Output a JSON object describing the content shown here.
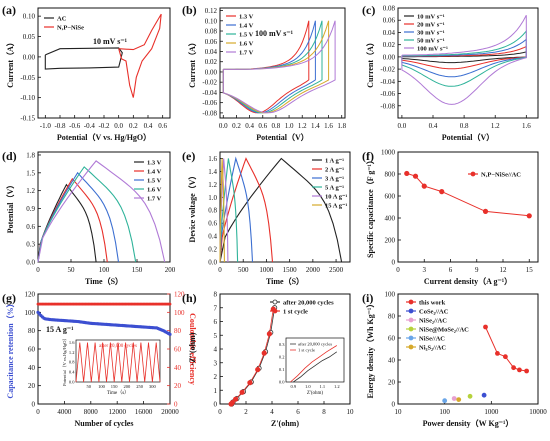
{
  "chart_data": [
    {
      "type": "line",
      "panel": "(a)",
      "plot": "cv",
      "xlabel": "Potential（V vs. Hg/HgO）",
      "ylabel": "Current（A）",
      "xlim": [
        -1.1,
        0.7
      ],
      "ylim": [
        -0.15,
        0.12
      ],
      "xticks": [
        "-1.0",
        "-0.8",
        "-0.6",
        "-0.4",
        "-0.2",
        "0.0",
        "0.2",
        "0.4",
        "0.6"
      ],
      "yticks": [
        "-0.15",
        "-0.10",
        "-0.05",
        "0.00",
        "0.05",
        "0.10"
      ],
      "annotation": "10 mV s⁻¹",
      "legend_position": "top-left",
      "series": [
        {
          "name": "AC",
          "color": "#222222",
          "points": [
            [
              -1.0,
              0.005
            ],
            [
              -0.8,
              0.02
            ],
            [
              -0.4,
              0.021
            ],
            [
              0.0,
              0.022
            ],
            [
              0.05,
              0.01
            ],
            [
              0.0,
              -0.025
            ],
            [
              -0.4,
              -0.027
            ],
            [
              -0.8,
              -0.028
            ],
            [
              -1.0,
              -0.03
            ],
            [
              -1.0,
              0.005
            ]
          ]
        },
        {
          "name": "N,P−NiSe",
          "color": "#e8302a",
          "points": [
            [
              0.0,
              0.02
            ],
            [
              0.2,
              0.018
            ],
            [
              0.35,
              0.03
            ],
            [
              0.45,
              0.065
            ],
            [
              0.58,
              0.105
            ],
            [
              0.56,
              0.07
            ],
            [
              0.45,
              0.02
            ],
            [
              0.32,
              -0.01
            ],
            [
              0.24,
              -0.05
            ],
            [
              0.2,
              -0.1
            ],
            [
              0.15,
              -0.07
            ],
            [
              0.1,
              -0.01
            ],
            [
              0.04,
              -0.005
            ],
            [
              0.0,
              0.02
            ]
          ]
        }
      ]
    },
    {
      "type": "line",
      "panel": "(b)",
      "plot": "cv",
      "xlabel": "Potential（V）",
      "ylabel": "Current（A）",
      "xlim": [
        -0.05,
        1.85
      ],
      "ylim": [
        -0.09,
        0.125
      ],
      "xticks": [
        "0.0",
        "0.2",
        "0.4",
        "0.6",
        "0.8",
        "1.0",
        "1.2",
        "1.4",
        "1.6",
        "1.8"
      ],
      "yticks": [
        "-0.08",
        "-0.06",
        "-0.04",
        "-0.02",
        "0.00",
        "0.02",
        "0.04",
        "0.06",
        "0.08",
        "0.10",
        "0.12"
      ],
      "annotation": "100 mV s⁻¹",
      "legend_position": "top-left",
      "series": [
        {
          "name": "1.3 V",
          "color": "#e8302a",
          "vmax": 1.3
        },
        {
          "name": "1.4 V",
          "color": "#3c6fd1",
          "vmax": 1.4
        },
        {
          "name": "1.5 V",
          "color": "#2fb39a",
          "vmax": 1.5
        },
        {
          "name": "1.6 V",
          "color": "#d6a92b",
          "vmax": 1.6
        },
        {
          "name": "1.7 V",
          "color": "#b07ad6",
          "vmax": 1.7
        }
      ]
    },
    {
      "type": "line",
      "panel": "(c)",
      "plot": "cv",
      "xlabel": "Potential（V）",
      "ylabel": "Current（A）",
      "xlim": [
        -0.05,
        1.75
      ],
      "ylim": [
        -0.1,
        0.08
      ],
      "xticks": [
        "0.0",
        "0.4",
        "0.8",
        "1.2",
        "1.6"
      ],
      "yticks": [
        "-0.08",
        "-0.06",
        "-0.04",
        "-0.02",
        "0.00",
        "0.02",
        "0.04",
        "0.06",
        "0.08"
      ],
      "legend_position": "top-left",
      "series": [
        {
          "name": "10 mV s⁻¹",
          "color": "#222222",
          "scale": 0.12
        },
        {
          "name": "20 mV s⁻¹",
          "color": "#e8302a",
          "scale": 0.25
        },
        {
          "name": "30 mV s⁻¹",
          "color": "#3c6fd1",
          "scale": 0.42
        },
        {
          "name": "50 mV s⁻¹",
          "color": "#2fb39a",
          "scale": 0.62
        },
        {
          "name": "100 mV s⁻¹",
          "color": "#b07ad6",
          "scale": 1.0
        }
      ]
    },
    {
      "type": "line",
      "panel": "(d)",
      "plot": "gcd",
      "xlabel": "Time（S）",
      "ylabel": "Potential（V）",
      "xlim": [
        0,
        200
      ],
      "ylim": [
        0,
        1.85
      ],
      "xticks": [
        "0",
        "50",
        "100",
        "150",
        "200"
      ],
      "yticks": [
        "0.0",
        "0.3",
        "0.6",
        "0.9",
        "1.2",
        "1.5",
        "1.8"
      ],
      "legend_position": "top-right",
      "series": [
        {
          "name": "1.3 V",
          "color": "#222222",
          "vmax": 1.3,
          "tpeak": 43,
          "tend": 88
        },
        {
          "name": "1.4 V",
          "color": "#e8302a",
          "vmax": 1.4,
          "tpeak": 52,
          "tend": 105
        },
        {
          "name": "1.5 V",
          "color": "#3c6fd1",
          "vmax": 1.5,
          "tpeak": 60,
          "tend": 122
        },
        {
          "name": "1.6 V",
          "color": "#2fb39a",
          "vmax": 1.6,
          "tpeak": 70,
          "tend": 148
        },
        {
          "name": "1.7 V",
          "color": "#b07ad6",
          "vmax": 1.7,
          "tpeak": 88,
          "tend": 192
        }
      ]
    },
    {
      "type": "line",
      "panel": "(e)",
      "plot": "gcd",
      "xlabel": "Time（S）",
      "ylabel": "Device voltage（V）",
      "xlim": [
        0,
        2800
      ],
      "ylim": [
        0,
        1.7
      ],
      "xticks": [
        "0",
        "500",
        "1000",
        "1500",
        "2000",
        "2500"
      ],
      "yticks": [
        "0.0",
        "0.2",
        "0.4",
        "0.6",
        "0.8",
        "1.0",
        "1.2",
        "1.4",
        "1.6"
      ],
      "legend_position": "top-right",
      "series": [
        {
          "name": "1 A g⁻¹",
          "color": "#222222",
          "vmax": 1.6,
          "tpeak": 1320,
          "tend": 2620
        },
        {
          "name": "2 A g⁻¹",
          "color": "#e8302a",
          "vmax": 1.6,
          "tpeak": 560,
          "tend": 1130
        },
        {
          "name": "3 A g⁻¹",
          "color": "#3c6fd1",
          "vmax": 1.6,
          "tpeak": 340,
          "tend": 700
        },
        {
          "name": "5 A g⁻¹",
          "color": "#2fb39a",
          "vmax": 1.6,
          "tpeak": 180,
          "tend": 380
        },
        {
          "name": "10 A g⁻¹",
          "color": "#b07ad6",
          "vmax": 1.6,
          "tpeak": 80,
          "tend": 170
        },
        {
          "name": "15 A g⁻¹",
          "color": "#d6a92b",
          "vmax": 1.6,
          "tpeak": 45,
          "tend": 95
        }
      ]
    },
    {
      "type": "line",
      "panel": "(f)",
      "plot": "rate",
      "xlabel": "Current density（A g⁻¹）",
      "ylabel": "Specific capacitance（F g⁻¹）",
      "xlim": [
        0,
        16
      ],
      "ylim": [
        0,
        1000
      ],
      "xticks": [
        "0",
        "3",
        "6",
        "9",
        "12",
        "15"
      ],
      "yticks": [
        "0",
        "200",
        "400",
        "600",
        "800",
        "1000"
      ],
      "legend_position": "top-right",
      "series": [
        {
          "name": "N,P−NiSe//AC",
          "color": "#e8302a",
          "points": [
            [
              1,
              805
            ],
            [
              2,
              780
            ],
            [
              3,
              690
            ],
            [
              5,
              640
            ],
            [
              10,
              460
            ],
            [
              15,
              420
            ]
          ]
        }
      ]
    },
    {
      "type": "line",
      "panel": "(g)",
      "plot": "cycling",
      "xlabel": "Number of cycles",
      "ylabel": "Capacitance retention（%）",
      "ylabel_right": "Coulombic efficiency",
      "xlim": [
        0,
        20000
      ],
      "ylim": [
        0,
        120
      ],
      "ylim_right": [
        0,
        120
      ],
      "xticks": [
        "0",
        "4000",
        "8000",
        "12000",
        "16000",
        "20000"
      ],
      "yticks": [
        "0",
        "20",
        "40",
        "60",
        "80",
        "100",
        "120"
      ],
      "yticks_right": [
        "0",
        "20",
        "40",
        "60",
        "80",
        "100",
        "120"
      ],
      "annotation": "15 A g⁻¹",
      "series": [
        {
          "name": "Capacitance retention",
          "color": "#3c4fd1",
          "points": [
            [
              0,
              100
            ],
            [
              500,
              96
            ],
            [
              1000,
              93
            ],
            [
              2000,
              92
            ],
            [
              4000,
              91
            ],
            [
              6000,
              90
            ],
            [
              8000,
              88
            ],
            [
              10000,
              87
            ],
            [
              12000,
              86
            ],
            [
              14000,
              85
            ],
            [
              16000,
              84
            ],
            [
              18000,
              83
            ],
            [
              19000,
              80
            ],
            [
              20000,
              76
            ]
          ]
        },
        {
          "name": "Coulombic efficiency",
          "color": "#e8302a",
          "points": [
            [
              0,
              109
            ],
            [
              20000,
              109
            ]
          ]
        }
      ],
      "inset": {
        "xlabel": "Time（s）",
        "ylabel": "Potential（V vs.Hg/HgO）",
        "title": "after 20,000 cycles",
        "xticks": [
          "50",
          "100",
          "150",
          "200",
          "250",
          "300"
        ],
        "yticks": [
          "0.0",
          "0.4",
          "0.8",
          "1.2",
          "1.6"
        ],
        "xlim": [
          0,
          330
        ],
        "ylim": [
          0,
          1.7
        ],
        "cycles": 11
      }
    },
    {
      "type": "line",
      "panel": "(h)",
      "plot": "nyquist",
      "xlabel": "Z'(ohm)",
      "ylabel": "-Z''(ohm)",
      "xlim": [
        0,
        10
      ],
      "ylim": [
        0,
        8
      ],
      "xticks": [
        "0",
        "2",
        "4",
        "6",
        "8",
        "10"
      ],
      "yticks": [
        "0",
        "1",
        "2",
        "3",
        "4",
        "5",
        "6",
        "7",
        "8"
      ],
      "legend_position": "top-right",
      "series": [
        {
          "name": "after 20,000 cycles",
          "color": "#333333",
          "points": [
            [
              0.9,
              0
            ],
            [
              1.0,
              0.15
            ],
            [
              1.3,
              0.4
            ],
            [
              1.8,
              0.9
            ],
            [
              2.4,
              1.6
            ],
            [
              3.0,
              2.6
            ],
            [
              3.5,
              3.8
            ],
            [
              3.9,
              5.2
            ],
            [
              4.2,
              7.0
            ]
          ]
        },
        {
          "name": "1 st cycle",
          "color": "#e8302a",
          "points": [
            [
              0.85,
              0
            ],
            [
              0.95,
              0.1
            ],
            [
              1.2,
              0.35
            ],
            [
              1.7,
              0.85
            ],
            [
              2.3,
              1.55
            ],
            [
              2.9,
              2.5
            ],
            [
              3.4,
              3.7
            ],
            [
              3.8,
              5.1
            ],
            [
              4.1,
              6.9
            ]
          ]
        }
      ],
      "inset": {
        "xlabel": "Z'(ohm)",
        "xticks": [
          "0.9",
          "1.0",
          "1.1",
          "1.2"
        ],
        "yticks": [
          "0.0",
          "0.1",
          "0.2",
          "0.3"
        ],
        "legend": [
          "after 20,000 cycles",
          "1 st cycle"
        ]
      }
    },
    {
      "type": "scatter",
      "panel": "(i)",
      "plot": "ragone",
      "xlabel": "Power density（W Kg⁻¹）",
      "ylabel": "Energy density（Wh Kg⁻¹）",
      "xscale": "log",
      "xlim": [
        10,
        10000
      ],
      "ylim": [
        0,
        100
      ],
      "xticks": [
        "10",
        "100",
        "1000",
        "10000"
      ],
      "yticks": [
        "0",
        "20",
        "40",
        "60",
        "80",
        "100"
      ],
      "legend_position": "top-left",
      "series": [
        {
          "name": "this work",
          "color": "#e8302a",
          "points": [
            [
              750,
              70
            ],
            [
              1350,
              46
            ],
            [
              2000,
              43
            ],
            [
              3000,
              33
            ],
            [
              4000,
              31
            ],
            [
              5700,
              30
            ]
          ]
        },
        {
          "name": "CoSe₂//AC",
          "color": "#3c4fd1",
          "points": [
            [
              700,
              8
            ]
          ]
        },
        {
          "name": "NiSe₂//AC",
          "color": "#e8a0d0",
          "points": [
            [
              160,
              5
            ]
          ]
        },
        {
          "name": "NiSe@MoSe₂//AC",
          "color": "#b6d23c",
          "points": [
            [
              350,
              7
            ]
          ]
        },
        {
          "name": "NiSe//AC",
          "color": "#6aa6e8",
          "points": [
            [
              100,
              3
            ]
          ]
        },
        {
          "name": "Ni₃S₂//AC",
          "color": "#d6a92b",
          "points": [
            [
              200,
              4
            ]
          ]
        }
      ]
    }
  ]
}
